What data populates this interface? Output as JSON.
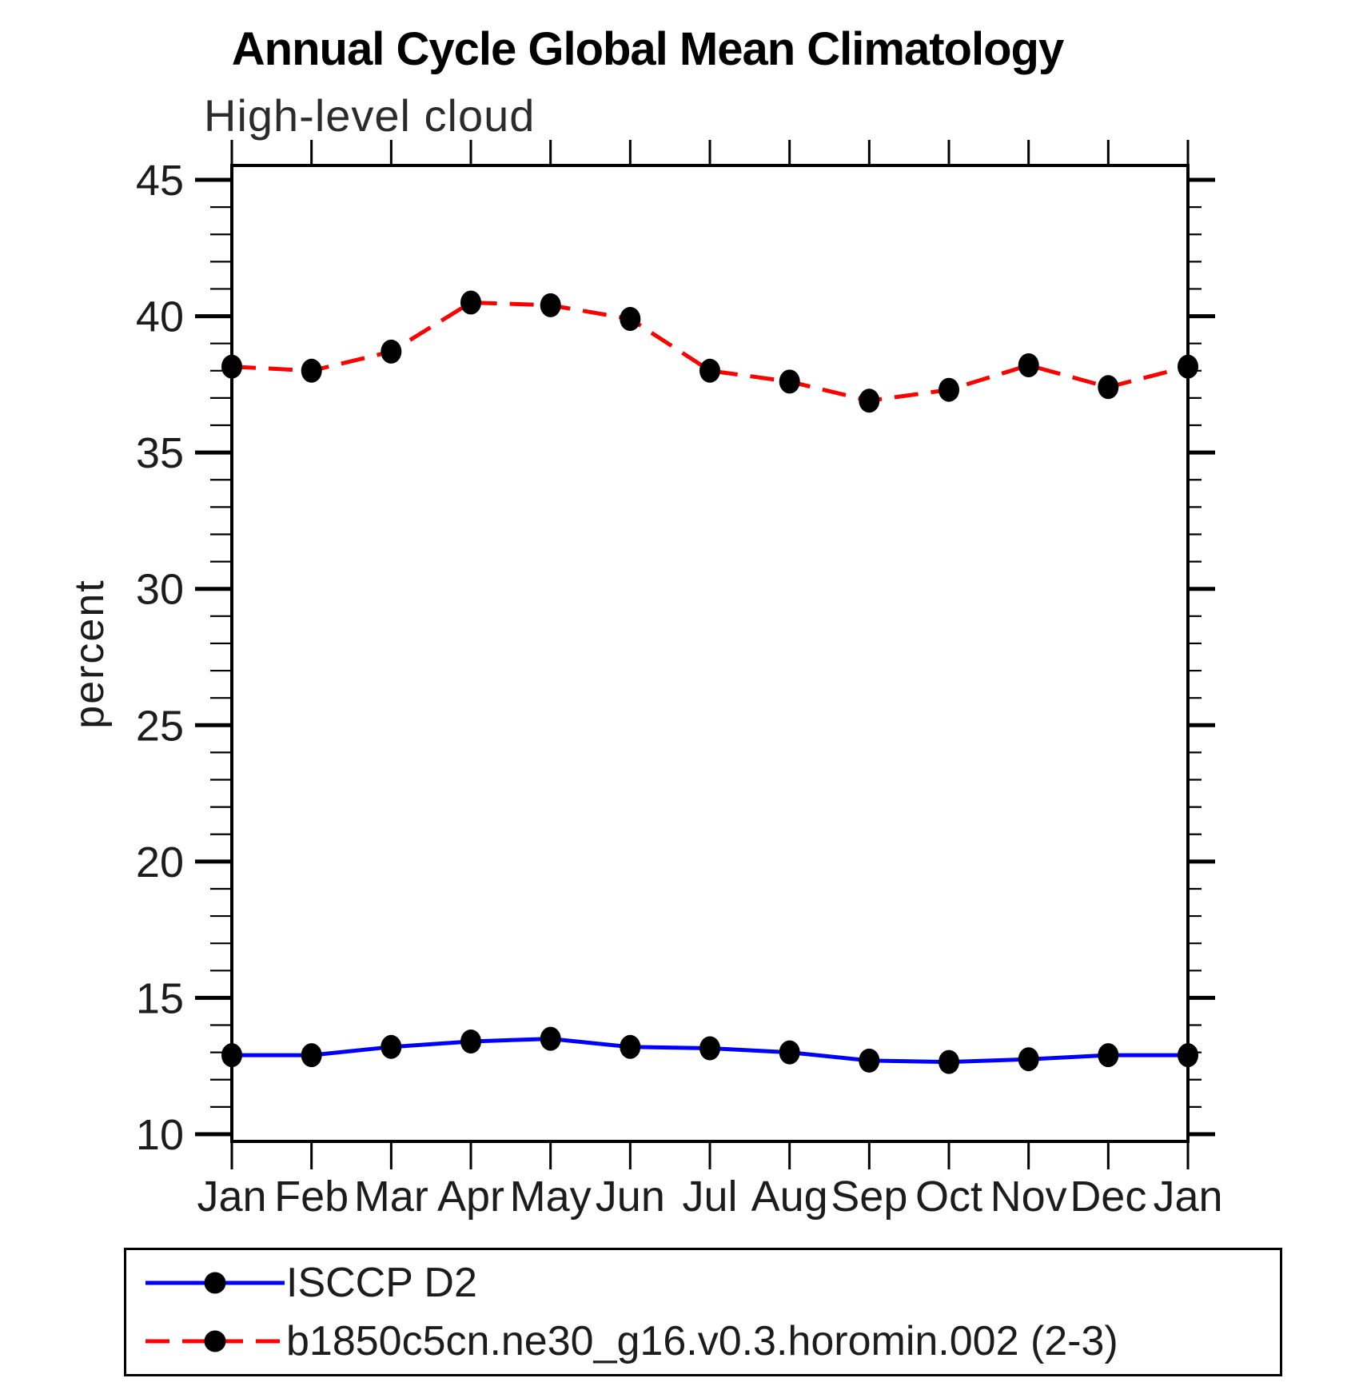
{
  "title": "Annual Cycle Global Mean Climatology",
  "subtitle": "High-level cloud",
  "chart_data": {
    "type": "line",
    "title": "Annual Cycle Global Mean Climatology",
    "subtitle": "High-level cloud",
    "xlabel": "",
    "ylabel": "percent",
    "categories": [
      "Jan",
      "Feb",
      "Mar",
      "Apr",
      "May",
      "Jun",
      "Jul",
      "Aug",
      "Sep",
      "Oct",
      "Nov",
      "Dec",
      "Jan"
    ],
    "ylim": [
      10,
      45
    ],
    "y_major_ticks": [
      45,
      40,
      35,
      30,
      25,
      20,
      15,
      10
    ],
    "y_minor_step": 1,
    "grid": false,
    "legend_position": "bottom-box",
    "series": [
      {
        "name": "ISCCP D2",
        "color": "#0000ff",
        "line_style": "solid",
        "marker": "filled-circle",
        "marker_color": "#000000",
        "values": [
          12.9,
          12.9,
          13.2,
          13.4,
          13.5,
          13.2,
          13.15,
          13.0,
          12.7,
          12.65,
          12.75,
          12.9,
          12.9
        ]
      },
      {
        "name": "b1850c5cn.ne30_g16.v0.3.horomin.002 (2-3)",
        "color": "#ff0000",
        "line_style": "dashed",
        "marker": "filled-circle",
        "marker_color": "#000000",
        "values": [
          38.15,
          38.0,
          38.7,
          40.5,
          40.4,
          39.9,
          38.0,
          37.6,
          36.9,
          37.3,
          38.2,
          37.4,
          38.15
        ]
      }
    ]
  },
  "colors": {
    "frame": "#000000",
    "tick": "#000000",
    "text": "#1c1c1c",
    "title_text": "#000000",
    "background": "#ffffff",
    "series_blue": "#0000ff",
    "series_red": "#ff0000",
    "marker_black": "#000000"
  }
}
